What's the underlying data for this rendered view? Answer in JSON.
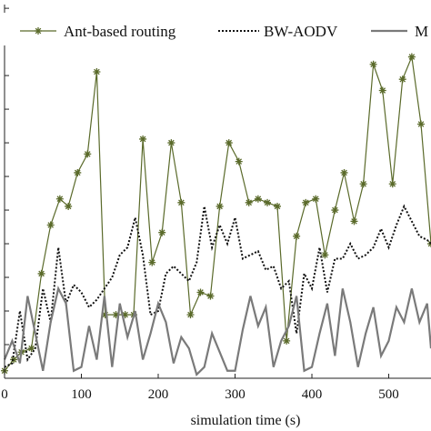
{
  "chart_data": {
    "type": "line",
    "xlabel": "simulation time (s)",
    "ylabel": "",
    "xlim": [
      0,
      555
    ],
    "ylim": [
      0,
      100
    ],
    "x_ticks": [
      0,
      100,
      200,
      300,
      400,
      500
    ],
    "x_tick_labels": [
      "0",
      "100",
      "200",
      "300",
      "400",
      "500"
    ],
    "grid": false,
    "legend_position": "top",
    "series": [
      {
        "name": "Ant-based routing",
        "color": "#5a6a2a",
        "style": "solid-star",
        "x": [
          0,
          12,
          22,
          35,
          48,
          60,
          72,
          83,
          95,
          108,
          120,
          131,
          145,
          157,
          168,
          180,
          192,
          205,
          217,
          230,
          242,
          255,
          268,
          280,
          292,
          305,
          318,
          330,
          342,
          355,
          367,
          380,
          392,
          405,
          417,
          430,
          442,
          455,
          467,
          480,
          492,
          505,
          518,
          530,
          542,
          555
        ],
        "y": [
          2,
          5,
          7,
          8,
          28,
          41,
          48,
          46,
          55,
          60,
          82,
          17,
          17,
          17,
          17,
          64,
          31,
          39,
          63,
          47,
          17,
          23,
          22,
          46,
          63,
          58,
          47,
          48,
          47,
          46,
          10,
          38,
          47,
          48,
          33,
          45,
          55,
          42,
          52,
          84,
          77,
          52,
          80,
          86,
          68,
          36
        ]
      },
      {
        "name": "BW-AODV",
        "color": "#111111",
        "style": "dotted",
        "x": [
          0,
          10,
          20,
          30,
          40,
          50,
          60,
          70,
          80,
          90,
          100,
          110,
          120,
          130,
          140,
          150,
          160,
          170,
          180,
          190,
          200,
          210,
          220,
          230,
          240,
          250,
          260,
          270,
          280,
          290,
          300,
          310,
          320,
          330,
          340,
          350,
          360,
          370,
          380,
          390,
          400,
          410,
          420,
          430,
          440,
          450,
          460,
          470,
          480,
          490,
          500,
          510,
          520,
          530,
          540,
          550,
          555
        ],
        "y": [
          3,
          4,
          18,
          5,
          8,
          24,
          15,
          35,
          20,
          25,
          23,
          19,
          21,
          24,
          27,
          33,
          35,
          43,
          33,
          17,
          18,
          28,
          30,
          28,
          26,
          31,
          46,
          35,
          41,
          36,
          43,
          32,
          33,
          34,
          29,
          30,
          24,
          26,
          12,
          28,
          24,
          35,
          23,
          32,
          32,
          36,
          32,
          33,
          35,
          40,
          35,
          41,
          46,
          42,
          38,
          37,
          36
        ]
      },
      {
        "name": "M",
        "color": "#7a7a7a",
        "style": "solid",
        "x": [
          0,
          10,
          20,
          30,
          40,
          50,
          60,
          70,
          80,
          90,
          100,
          110,
          120,
          130,
          140,
          150,
          160,
          170,
          180,
          190,
          200,
          210,
          220,
          230,
          240,
          250,
          260,
          270,
          280,
          290,
          300,
          310,
          320,
          330,
          340,
          350,
          360,
          370,
          380,
          390,
          400,
          410,
          420,
          430,
          440,
          450,
          460,
          470,
          480,
          490,
          500,
          510,
          520,
          530,
          540,
          550,
          555
        ],
        "y": [
          5,
          10,
          4,
          22,
          12,
          2,
          15,
          24,
          20,
          2,
          3,
          14,
          5,
          22,
          3,
          20,
          11,
          18,
          5,
          12,
          20,
          15,
          4,
          11,
          8,
          1,
          3,
          12,
          7,
          2,
          2,
          13,
          22,
          14,
          19,
          3,
          10,
          14,
          22,
          2,
          3,
          12,
          20,
          6,
          24,
          15,
          3,
          12,
          19,
          6,
          10,
          19,
          15,
          24,
          15,
          20,
          8
        ]
      }
    ]
  }
}
